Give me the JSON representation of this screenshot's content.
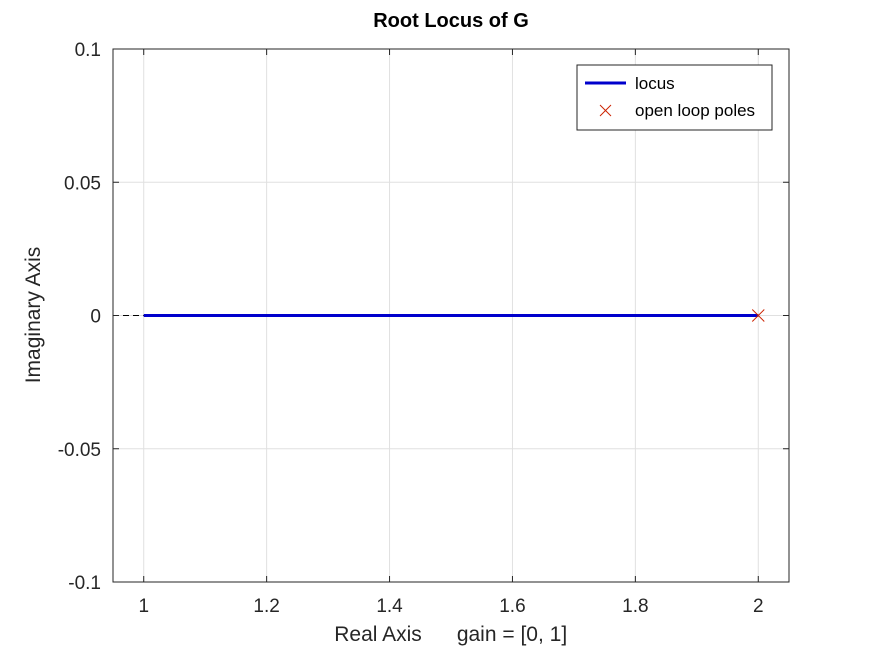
{
  "chart_data": {
    "type": "line",
    "title": "Root Locus of G",
    "xlabel": "Real Axis",
    "xlabel_note": "gain = [0, 1]",
    "ylabel": "Imaginary Axis",
    "xlim": [
      0.95,
      2.05
    ],
    "ylim": [
      -0.1,
      0.1
    ],
    "xticks": [
      1,
      1.2,
      1.4,
      1.6,
      1.8,
      2
    ],
    "xtick_labels": [
      "1",
      "1.2",
      "1.4",
      "1.6",
      "1.8",
      "2"
    ],
    "yticks": [
      -0.1,
      -0.05,
      0,
      0.05,
      0.1
    ],
    "ytick_labels": [
      "-0.1",
      "-0.05",
      "0",
      "0.05",
      "0.1"
    ],
    "grid": true,
    "legend_position": "top-right",
    "series": [
      {
        "name": "locus",
        "color": "#0000cc",
        "marker": "none",
        "x": [
          1,
          1.2,
          1.4,
          1.6,
          1.8,
          2
        ],
        "y": [
          0,
          0,
          0,
          0,
          0,
          0
        ]
      },
      {
        "name": "open loop poles",
        "color": "#cc2200",
        "marker": "x",
        "x": [
          2
        ],
        "y": [
          0
        ]
      }
    ],
    "axis_dash": {
      "x": [
        0.95,
        0.95
      ],
      "y": [
        0,
        0
      ]
    }
  }
}
